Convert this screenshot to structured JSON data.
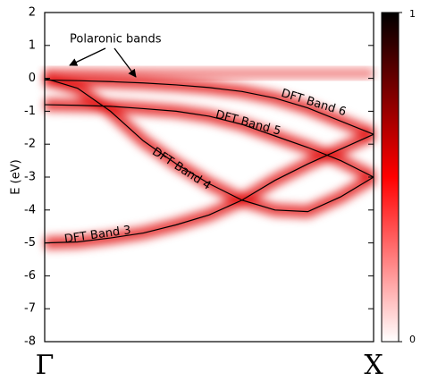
{
  "chart_data": {
    "type": "band-structure",
    "ylabel": "E (eV)",
    "ylim": [
      -8,
      2
    ],
    "yticks": [
      -8,
      -7,
      -6,
      -5,
      -4,
      -3,
      -2,
      -1,
      0,
      1,
      2
    ],
    "xlim": [
      0,
      1
    ],
    "xticks": [
      {
        "value": 0,
        "label": "Γ"
      },
      {
        "value": 1,
        "label": "X"
      }
    ],
    "x": [
      0,
      0.1,
      0.2,
      0.3,
      0.4,
      0.5,
      0.6,
      0.7,
      0.8,
      0.9,
      1.0
    ],
    "line_color": "#000000",
    "glow_color": "#e00000",
    "series": [
      {
        "name": "DFT Band 3",
        "values": [
          -5.0,
          -4.97,
          -4.85,
          -4.7,
          -4.45,
          -4.15,
          -3.7,
          -3.1,
          -2.6,
          -2.15,
          -1.7
        ]
      },
      {
        "name": "DFT Band 4",
        "values": [
          0.0,
          -0.3,
          -1.0,
          -1.9,
          -2.6,
          -3.2,
          -3.7,
          -4.0,
          -4.05,
          -3.6,
          -3.0
        ]
      },
      {
        "name": "DFT Band 5",
        "values": [
          -0.8,
          -0.82,
          -0.85,
          -0.92,
          -1.0,
          -1.15,
          -1.4,
          -1.75,
          -2.1,
          -2.5,
          -3.0
        ]
      },
      {
        "name": "DFT Band 6",
        "values": [
          -0.05,
          -0.07,
          -0.1,
          -0.14,
          -0.2,
          -0.28,
          -0.4,
          -0.6,
          -0.9,
          -1.3,
          -1.7
        ]
      }
    ],
    "annotation": "Polaronic bands",
    "colorbar": {
      "colors": [
        "#ffffff",
        "#ff0000",
        "#000000"
      ],
      "clim": [
        0,
        1
      ],
      "ticks": [
        0,
        1
      ]
    }
  }
}
